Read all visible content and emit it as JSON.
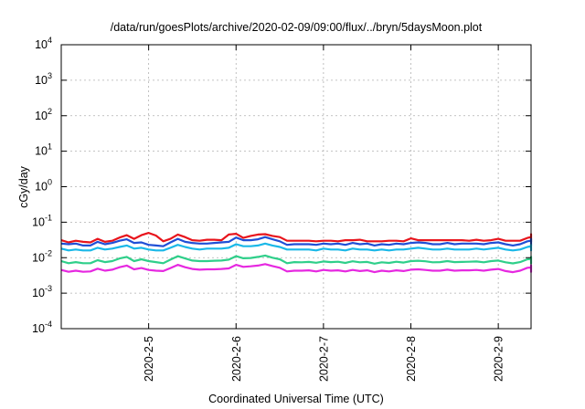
{
  "chart_data": {
    "type": "line",
    "title": "/data/run/goesPlots/archive/2020-02-09/09:00/flux/../bryn/5daysMoon.plot",
    "xlabel": "Coordinated Universal Time (UTC)",
    "ylabel": "cGy/day",
    "yscale": "log",
    "ylim": [
      0.0001,
      10000
    ],
    "xlim": [
      "2020-02-04 00:00",
      "2020-02-09 09:00"
    ],
    "grid": true,
    "legend": "none",
    "y_ticks": [
      {
        "value": 0.0001,
        "base": "10",
        "exp": "-4"
      },
      {
        "value": 0.001,
        "base": "10",
        "exp": "-3"
      },
      {
        "value": 0.01,
        "base": "10",
        "exp": "-2"
      },
      {
        "value": 0.1,
        "base": "10",
        "exp": "-1"
      },
      {
        "value": 1,
        "base": "10",
        "exp": "0"
      },
      {
        "value": 10,
        "base": "10",
        "exp": "1"
      },
      {
        "value": 100,
        "base": "10",
        "exp": "2"
      },
      {
        "value": 1000,
        "base": "10",
        "exp": "3"
      },
      {
        "value": 10000,
        "base": "10",
        "exp": "4"
      }
    ],
    "x_ticks": [
      {
        "value": "2020-02-05 00:00",
        "label": "2020-2-5"
      },
      {
        "value": "2020-02-06 00:00",
        "label": "2020-2-6"
      },
      {
        "value": "2020-02-07 00:00",
        "label": "2020-2-7"
      },
      {
        "value": "2020-02-08 00:00",
        "label": "2020-2-8"
      },
      {
        "value": "2020-02-09 00:00",
        "label": "2020-2-9"
      }
    ],
    "x_start": "2020-02-04 00:00",
    "x_step_hours": 2,
    "series": [
      {
        "color": "#e8141c",
        "values": [
          0.031,
          0.027,
          0.03,
          0.028,
          0.027,
          0.034,
          0.028,
          0.03,
          0.037,
          0.043,
          0.034,
          0.043,
          0.05,
          0.042,
          0.029,
          0.034,
          0.045,
          0.038,
          0.031,
          0.03,
          0.032,
          0.032,
          0.031,
          0.045,
          0.047,
          0.036,
          0.041,
          0.045,
          0.046,
          0.041,
          0.038,
          0.03,
          0.03,
          0.03,
          0.03,
          0.029,
          0.03,
          0.03,
          0.029,
          0.031,
          0.031,
          0.032,
          0.029,
          0.029,
          0.029,
          0.03,
          0.03,
          0.029,
          0.035,
          0.031,
          0.031,
          0.031,
          0.031,
          0.031,
          0.031,
          0.031,
          0.03,
          0.032,
          0.03,
          0.031,
          0.034,
          0.03,
          0.03,
          0.03,
          0.036,
          0.038,
          0.035,
          0.028,
          0.038,
          0.031,
          0.03,
          0.03,
          0.029,
          0.031,
          0.032,
          0.029,
          0.029,
          0.029,
          0.03,
          0.033,
          0.035,
          0.03,
          0.029,
          0.033,
          0.034,
          0.035,
          0.035,
          0.036,
          0.036,
          0.035,
          0.035,
          0.034,
          0.035,
          0.034,
          0.037,
          0.037,
          0.034,
          0.033,
          0.038,
          0.035,
          0.033,
          0.035,
          0.036,
          0.034,
          0.038,
          0.036,
          0.034,
          0.036,
          0.036,
          0.035,
          0.036,
          0.036,
          0.035,
          0.037,
          0.033,
          0.036,
          0.033,
          0.037,
          0.044,
          0.034,
          0.038,
          0.034,
          0.034,
          0.033,
          0.034,
          0.031,
          0.035,
          0.034,
          0.035,
          0.034,
          0.036,
          0.035,
          0.036,
          0.035,
          0.034,
          0.037,
          0.039,
          0.034,
          0.038,
          0.036,
          0.035,
          0.035,
          0.039,
          0.034,
          0.035,
          0.036,
          0.04,
          0.036,
          0.033,
          0.037,
          0.035,
          0.034,
          0.038,
          0.046,
          0.039,
          0.042,
          0.042,
          0.038,
          0.038,
          0.036,
          0.04,
          0.044,
          0.046,
          0.045,
          0.04,
          0.044,
          0.045
        ]
      },
      {
        "color": "#1f4fd6",
        "values": [
          0.025,
          0.024,
          0.025,
          0.022,
          0.022,
          0.028,
          0.024,
          0.026,
          0.03,
          0.033,
          0.026,
          0.027,
          0.023,
          0.022,
          0.021,
          0.027,
          0.034,
          0.028,
          0.026,
          0.025,
          0.025,
          0.026,
          0.027,
          0.028,
          0.037,
          0.031,
          0.031,
          0.033,
          0.038,
          0.033,
          0.029,
          0.023,
          0.024,
          0.024,
          0.024,
          0.023,
          0.025,
          0.024,
          0.025,
          0.023,
          0.026,
          0.024,
          0.025,
          0.022,
          0.024,
          0.023,
          0.025,
          0.024,
          0.026,
          0.027,
          0.026,
          0.024,
          0.024,
          0.026,
          0.024,
          0.025,
          0.025,
          0.025,
          0.024,
          0.026,
          0.027,
          0.024,
          0.022,
          0.024,
          0.029,
          0.03,
          0.028,
          0.025,
          0.026,
          0.026,
          0.026,
          0.025,
          0.023,
          0.022,
          0.027,
          0.025,
          0.025,
          0.024,
          0.025,
          0.027,
          0.027,
          0.025,
          0.023,
          0.027,
          0.027,
          0.027,
          0.028,
          0.029,
          0.028,
          0.028,
          0.028,
          0.028,
          0.029,
          0.028,
          0.028,
          0.028,
          0.027,
          0.026,
          0.029,
          0.028,
          0.027,
          0.027,
          0.027,
          0.027,
          0.03,
          0.028,
          0.026,
          0.028,
          0.028,
          0.028,
          0.029,
          0.028,
          0.027,
          0.03,
          0.026,
          0.028,
          0.026,
          0.028,
          0.033,
          0.026,
          0.029,
          0.027,
          0.026,
          0.026,
          0.027,
          0.025,
          0.027,
          0.027,
          0.027,
          0.026,
          0.029,
          0.027,
          0.029,
          0.027,
          0.027,
          0.028,
          0.03,
          0.027,
          0.029,
          0.028,
          0.027,
          0.027,
          0.031,
          0.028,
          0.028,
          0.028,
          0.031,
          0.028,
          0.026,
          0.028,
          0.028,
          0.027,
          0.03,
          0.034,
          0.03,
          0.032,
          0.033,
          0.03,
          0.03,
          0.029,
          0.031,
          0.032,
          0.033,
          0.033,
          0.031,
          0.033,
          0.034
        ]
      },
      {
        "color": "#1ab8e8",
        "values": [
          0.018,
          0.016,
          0.017,
          0.016,
          0.016,
          0.019,
          0.017,
          0.018,
          0.02,
          0.022,
          0.018,
          0.019,
          0.017,
          0.016,
          0.016,
          0.019,
          0.023,
          0.02,
          0.018,
          0.017,
          0.018,
          0.018,
          0.018,
          0.019,
          0.024,
          0.021,
          0.021,
          0.022,
          0.025,
          0.022,
          0.02,
          0.017,
          0.017,
          0.017,
          0.017,
          0.016,
          0.018,
          0.017,
          0.017,
          0.016,
          0.018,
          0.017,
          0.017,
          0.016,
          0.017,
          0.016,
          0.017,
          0.017,
          0.018,
          0.019,
          0.018,
          0.017,
          0.017,
          0.018,
          0.017,
          0.017,
          0.017,
          0.018,
          0.017,
          0.018,
          0.019,
          0.017,
          0.016,
          0.017,
          0.02,
          0.021,
          0.02,
          0.018,
          0.018,
          0.018,
          0.018,
          0.017,
          0.016,
          0.016,
          0.019,
          0.017,
          0.018,
          0.017,
          0.018,
          0.019,
          0.019,
          0.017,
          0.016,
          0.019,
          0.019,
          0.019,
          0.019,
          0.02,
          0.02,
          0.02,
          0.02,
          0.019,
          0.02,
          0.019,
          0.02,
          0.02,
          0.019,
          0.018,
          0.02,
          0.02,
          0.019,
          0.019,
          0.019,
          0.019,
          0.021,
          0.02,
          0.018,
          0.019,
          0.02,
          0.019,
          0.02,
          0.02,
          0.019,
          0.021,
          0.018,
          0.019,
          0.018,
          0.02,
          0.023,
          0.018,
          0.02,
          0.019,
          0.018,
          0.018,
          0.019,
          0.017,
          0.019,
          0.019,
          0.019,
          0.018,
          0.02,
          0.019,
          0.02,
          0.019,
          0.019,
          0.02,
          0.021,
          0.019,
          0.02,
          0.02,
          0.019,
          0.019,
          0.021,
          0.019,
          0.019,
          0.02,
          0.021,
          0.02,
          0.018,
          0.02,
          0.019,
          0.019,
          0.021,
          0.023,
          0.021,
          0.022,
          0.022,
          0.021,
          0.021,
          0.02,
          0.021,
          0.022,
          0.023,
          0.022,
          0.021,
          0.022,
          0.023
        ]
      },
      {
        "color": "#2fcf8a",
        "values": [
          0.008,
          0.007,
          0.0075,
          0.007,
          0.007,
          0.0085,
          0.0075,
          0.008,
          0.0095,
          0.0105,
          0.008,
          0.009,
          0.008,
          0.0075,
          0.007,
          0.0088,
          0.011,
          0.0095,
          0.0083,
          0.008,
          0.008,
          0.0082,
          0.0083,
          0.0088,
          0.011,
          0.0096,
          0.0098,
          0.0105,
          0.0115,
          0.01,
          0.009,
          0.007,
          0.0075,
          0.0074,
          0.0076,
          0.0072,
          0.0078,
          0.0075,
          0.0077,
          0.0071,
          0.0079,
          0.0074,
          0.0076,
          0.0068,
          0.0074,
          0.0071,
          0.0077,
          0.0073,
          0.008,
          0.0082,
          0.0079,
          0.0074,
          0.0075,
          0.008,
          0.0075,
          0.0076,
          0.0077,
          0.0078,
          0.0074,
          0.008,
          0.0083,
          0.0074,
          0.0069,
          0.0075,
          0.009,
          0.0092,
          0.0087,
          0.0078,
          0.0081,
          0.0082,
          0.008,
          0.0077,
          0.0071,
          0.0069,
          0.0085,
          0.0078,
          0.0078,
          0.0075,
          0.0078,
          0.0083,
          0.0083,
          0.0076,
          0.0071,
          0.0084,
          0.0083,
          0.0085,
          0.0087,
          0.009,
          0.0088,
          0.0087,
          0.0088,
          0.0086,
          0.0089,
          0.0086,
          0.0087,
          0.0088,
          0.0083,
          0.0081,
          0.009,
          0.0087,
          0.0084,
          0.0084,
          0.0085,
          0.0084,
          0.0093,
          0.0088,
          0.0081,
          0.0086,
          0.0087,
          0.0087,
          0.009,
          0.0088,
          0.0084,
          0.0092,
          0.0081,
          0.0087,
          0.008,
          0.0087,
          0.0102,
          0.0081,
          0.009,
          0.0084,
          0.0082,
          0.0081,
          0.0084,
          0.0077,
          0.0085,
          0.0083,
          0.0085,
          0.0082,
          0.009,
          0.0085,
          0.009,
          0.0085,
          0.0084,
          0.0088,
          0.0093,
          0.0083,
          0.009,
          0.0087,
          0.0085,
          0.0085,
          0.0096,
          0.0086,
          0.0087,
          0.0088,
          0.0096,
          0.0087,
          0.0081,
          0.0088,
          0.0086,
          0.0084,
          0.0093,
          0.0106,
          0.0093,
          0.01,
          0.0101,
          0.0094,
          0.0093,
          0.009,
          0.0096,
          0.01,
          0.0104,
          0.0103,
          0.0097,
          0.0102,
          0.0105
        ]
      },
      {
        "color": "#e628e0",
        "values": [
          0.0045,
          0.004,
          0.0043,
          0.004,
          0.0041,
          0.0049,
          0.0043,
          0.0046,
          0.0054,
          0.006,
          0.0047,
          0.0051,
          0.0045,
          0.0043,
          0.0042,
          0.0051,
          0.0063,
          0.0054,
          0.0048,
          0.0046,
          0.0047,
          0.0047,
          0.0048,
          0.005,
          0.0063,
          0.0055,
          0.0057,
          0.006,
          0.0066,
          0.0058,
          0.0052,
          0.0041,
          0.0043,
          0.0043,
          0.0044,
          0.0041,
          0.0045,
          0.0043,
          0.0044,
          0.0041,
          0.0045,
          0.0042,
          0.0044,
          0.0039,
          0.0043,
          0.0041,
          0.0044,
          0.0042,
          0.0046,
          0.0047,
          0.0045,
          0.0043,
          0.0043,
          0.0046,
          0.0043,
          0.0044,
          0.0044,
          0.0045,
          0.0043,
          0.0046,
          0.0048,
          0.0042,
          0.0039,
          0.0043,
          0.0052,
          0.0053,
          0.005,
          0.0045,
          0.0047,
          0.0047,
          0.0046,
          0.0044,
          0.0041,
          0.004,
          0.0049,
          0.0045,
          0.0045,
          0.0043,
          0.0045,
          0.0048,
          0.0048,
          0.0044,
          0.0041,
          0.0048,
          0.0048,
          0.0049,
          0.005,
          0.0052,
          0.0051,
          0.005,
          0.0051,
          0.005,
          0.0051,
          0.005,
          0.005,
          0.0051,
          0.0048,
          0.0047,
          0.0052,
          0.005,
          0.0048,
          0.0049,
          0.0049,
          0.0049,
          0.0054,
          0.0051,
          0.0047,
          0.005,
          0.005,
          0.005,
          0.0052,
          0.0051,
          0.0049,
          0.0053,
          0.0047,
          0.005,
          0.0046,
          0.005,
          0.0059,
          0.0047,
          0.0052,
          0.0049,
          0.0047,
          0.0047,
          0.0049,
          0.0044,
          0.0049,
          0.0048,
          0.0049,
          0.0047,
          0.0052,
          0.0049,
          0.0052,
          0.0049,
          0.0049,
          0.0051,
          0.0054,
          0.0048,
          0.0052,
          0.005,
          0.0049,
          0.0049,
          0.0055,
          0.005,
          0.005,
          0.0051,
          0.0055,
          0.005,
          0.0047,
          0.0051,
          0.005,
          0.0049,
          0.0054,
          0.0061,
          0.0054,
          0.0058,
          0.0058,
          0.0054,
          0.0054,
          0.0052,
          0.0056,
          0.0058,
          0.006,
          0.006,
          0.0056,
          0.0059,
          0.006
        ]
      }
    ]
  }
}
